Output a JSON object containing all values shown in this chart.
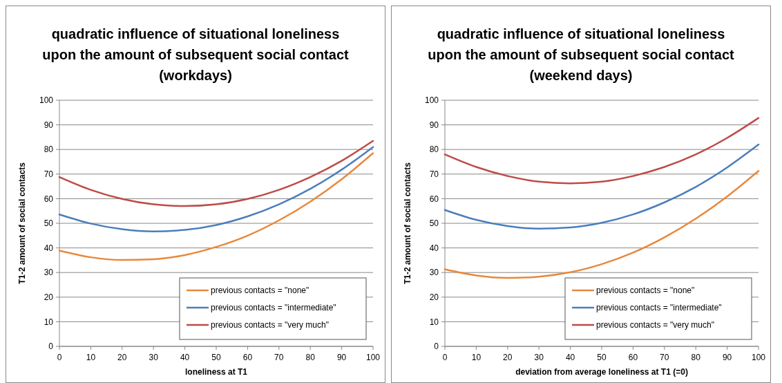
{
  "chart_data": [
    {
      "type": "line",
      "title": "quadratic influence of situational loneliness upon the amount of subsequent social contact (workdays)",
      "xlabel": "loneliness at T1",
      "ylabel": "T1-2 amount of social contacts",
      "x": [
        0,
        10,
        20,
        30,
        40,
        50,
        60,
        70,
        80,
        90,
        100
      ],
      "xlim": [
        0,
        100
      ],
      "xticks": [
        0,
        10,
        20,
        30,
        40,
        50,
        60,
        70,
        80,
        90,
        100
      ],
      "ylim": [
        0,
        100
      ],
      "yticks": [
        0,
        10,
        20,
        30,
        40,
        50,
        60,
        70,
        80,
        90,
        100
      ],
      "grid": "y",
      "legend": "bottom right",
      "marker": "none",
      "line_style": "solid",
      "series": [
        {
          "name": "previous contacts = \"none\"",
          "color": "#e8883a",
          "values": [
            38.9,
            36.2,
            35.1,
            35.4,
            37.1,
            40.4,
            45.0,
            51.2,
            58.8,
            67.9,
            78.5
          ]
        },
        {
          "name": "previous contacts = \"intermediate\"",
          "color": "#4a7ebb",
          "values": [
            53.6,
            49.9,
            47.6,
            46.7,
            47.3,
            49.3,
            52.8,
            57.7,
            64.0,
            71.8,
            81.0
          ]
        },
        {
          "name": "previous contacts = \"very much\"",
          "color": "#be4b48",
          "values": [
            68.8,
            63.6,
            59.9,
            57.7,
            57.0,
            57.7,
            59.9,
            63.6,
            68.8,
            75.4,
            83.5
          ]
        }
      ]
    },
    {
      "type": "line",
      "title": "quadratic influence of situational loneliness upon the amount of subsequent social contact (weekend days)",
      "xlabel": "deviation from average loneliness at T1 (=0)",
      "ylabel": "T1-2 amount of social contacts",
      "x": [
        0,
        10,
        20,
        30,
        40,
        50,
        60,
        70,
        80,
        90,
        100
      ],
      "xlim": [
        0,
        100
      ],
      "xticks": [
        0,
        10,
        20,
        30,
        40,
        50,
        60,
        70,
        80,
        90,
        100
      ],
      "ylim": [
        0,
        100
      ],
      "yticks": [
        0,
        10,
        20,
        30,
        40,
        50,
        60,
        70,
        80,
        90,
        100
      ],
      "grid": "y",
      "legend": "bottom right",
      "marker": "none",
      "line_style": "solid",
      "series": [
        {
          "name": "previous contacts = \"none\"",
          "color": "#e8883a",
          "values": [
            31.3,
            28.8,
            27.8,
            28.3,
            30.1,
            33.4,
            38.1,
            44.3,
            51.9,
            60.9,
            71.3
          ]
        },
        {
          "name": "previous contacts = \"intermediate\"",
          "color": "#4a7ebb",
          "values": [
            55.4,
            51.4,
            48.9,
            47.8,
            48.3,
            50.2,
            53.6,
            58.5,
            64.8,
            72.7,
            82.0
          ]
        },
        {
          "name": "previous contacts = \"very much\"",
          "color": "#be4b48",
          "values": [
            78.0,
            72.9,
            69.2,
            66.9,
            66.2,
            66.9,
            69.2,
            72.9,
            78.0,
            84.7,
            92.8
          ]
        }
      ]
    }
  ]
}
